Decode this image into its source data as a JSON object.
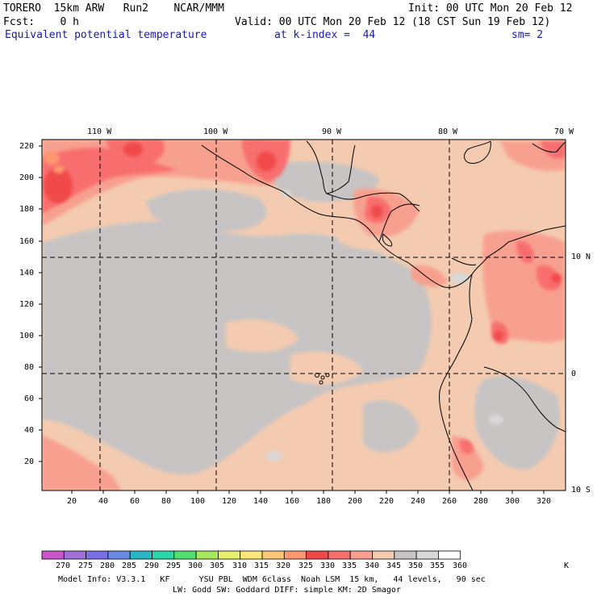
{
  "header": {
    "model": "TORERO  15km ARW   Run2    NCAR/MMM",
    "init": "Init: 00 UTC Mon 20 Feb 12",
    "forecast": "Fcst:    0 h",
    "valid": "Valid: 00 UTC Mon 20 Feb 12 (18 CST Sun 19 Feb 12)",
    "field": "Equivalent potential temperature",
    "level": "at k-index =  44",
    "smoothing": "sm= 2"
  },
  "map": {
    "lon_labels": [
      "110 W",
      "100 W",
      "90 W",
      "80 W",
      "70 W"
    ],
    "lat_labels": [
      "10 N",
      "0",
      "10 S"
    ],
    "y_ticks": [
      "220",
      "200",
      "180",
      "160",
      "140",
      "120",
      "100",
      "80",
      "60",
      "40",
      "20"
    ],
    "x_ticks": [
      "20",
      "40",
      "60",
      "80",
      "100",
      "120",
      "140",
      "160",
      "180",
      "200",
      "220",
      "240",
      "260",
      "280",
      "300",
      "320"
    ]
  },
  "colorbar": {
    "levels": [
      "270",
      "275",
      "280",
      "285",
      "290",
      "295",
      "300",
      "305",
      "310",
      "315",
      "320",
      "325",
      "330",
      "335",
      "340",
      "345",
      "350",
      "355",
      "360"
    ],
    "unit": "K",
    "colors": [
      "#cc55cc",
      "#a070d8",
      "#7a6ee6",
      "#6a8ae6",
      "#28b8c8",
      "#28d8a8",
      "#50e070",
      "#a8e860",
      "#e8f070",
      "#ffe878",
      "#ffc878",
      "#ff9870",
      "#f04848",
      "#f86e6e",
      "#f8a090",
      "#f4cbb0",
      "#c8c4c4",
      "#d8d8d8",
      "#ffffff"
    ]
  },
  "footer": {
    "line1": "Model Info: V3.3.1   KF      YSU PBL  WDM 6class  Noah LSM  15 km,   44 levels,   90 sec",
    "line2": "LW: Godd SW: Goddard DIFF: simple KM: 2D Smagor"
  }
}
